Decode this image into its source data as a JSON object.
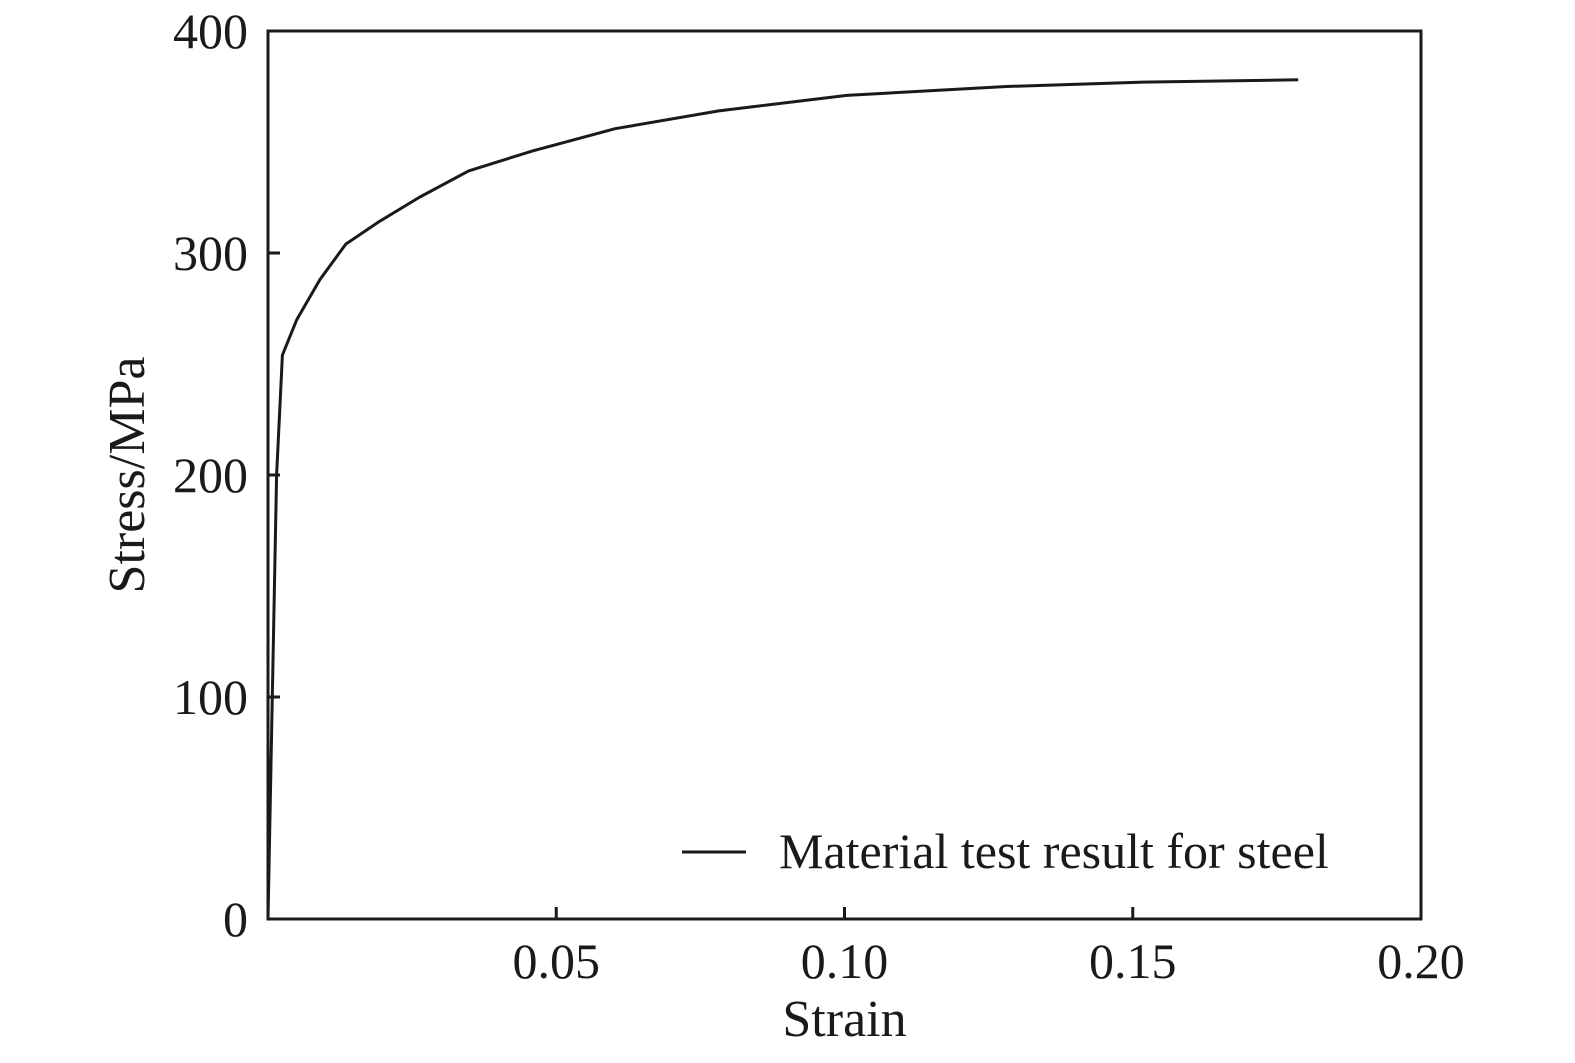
{
  "chart_data": {
    "type": "line",
    "title": "",
    "xlabel": "Strain",
    "ylabel": "Stress/MPa",
    "xlim": [
      0,
      0.2
    ],
    "ylim": [
      0,
      400
    ],
    "x_ticks": [
      0.05,
      0.1,
      0.15,
      0.2
    ],
    "x_tick_labels": [
      "0.05",
      "0.10",
      "0.15",
      "0.20"
    ],
    "y_ticks": [
      0,
      100,
      200,
      300,
      400
    ],
    "y_tick_labels": [
      "0",
      "100",
      "200",
      "300",
      "400"
    ],
    "grid": false,
    "legend_position": "bottom-right",
    "series": [
      {
        "name": "Material test result for steel",
        "color": "#1a1a1a",
        "x": [
          0,
          0.0015,
          0.0025,
          0.005,
          0.009,
          0.0135,
          0.0192,
          0.0262,
          0.0348,
          0.0459,
          0.0602,
          0.0782,
          0.1004,
          0.1281,
          0.1518,
          0.1787
        ],
        "y": [
          0,
          200,
          254,
          270,
          288,
          304,
          314,
          325,
          337,
          346,
          356,
          364,
          371,
          375,
          377,
          378
        ]
      }
    ]
  }
}
